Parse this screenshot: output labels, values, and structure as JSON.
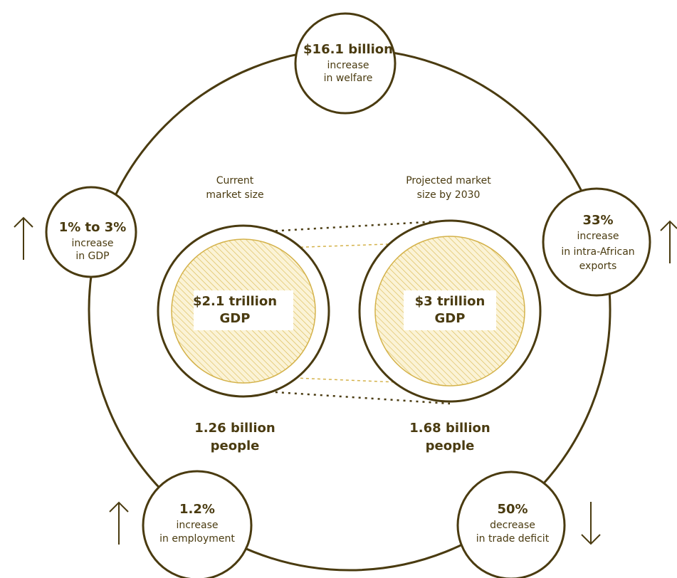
{
  "nodes": [
    {
      "lines": [
        "$16.1 billion",
        "increase",
        "in welfare"
      ]
    },
    {
      "lines": [
        "1% to 3%",
        "increase",
        "in GDP"
      ]
    },
    {
      "lines": [
        "33%",
        "increase",
        "in intra-African",
        "exports"
      ]
    },
    {
      "lines": [
        "1.2%",
        "increase",
        "in employment"
      ]
    },
    {
      "lines": [
        "50%",
        "decrease",
        "in trade deficit"
      ]
    }
  ],
  "markets": [
    {
      "caption": [
        "Current",
        "market size"
      ],
      "gdp": [
        "$2.1 trillion",
        "GDP"
      ],
      "people": [
        "1.26 billion",
        "people"
      ]
    },
    {
      "caption": [
        "Projected market",
        "size by 2030"
      ],
      "gdp": [
        "$3 trillion",
        "GDP"
      ],
      "people": [
        "1.68 billion",
        "people"
      ]
    }
  ]
}
